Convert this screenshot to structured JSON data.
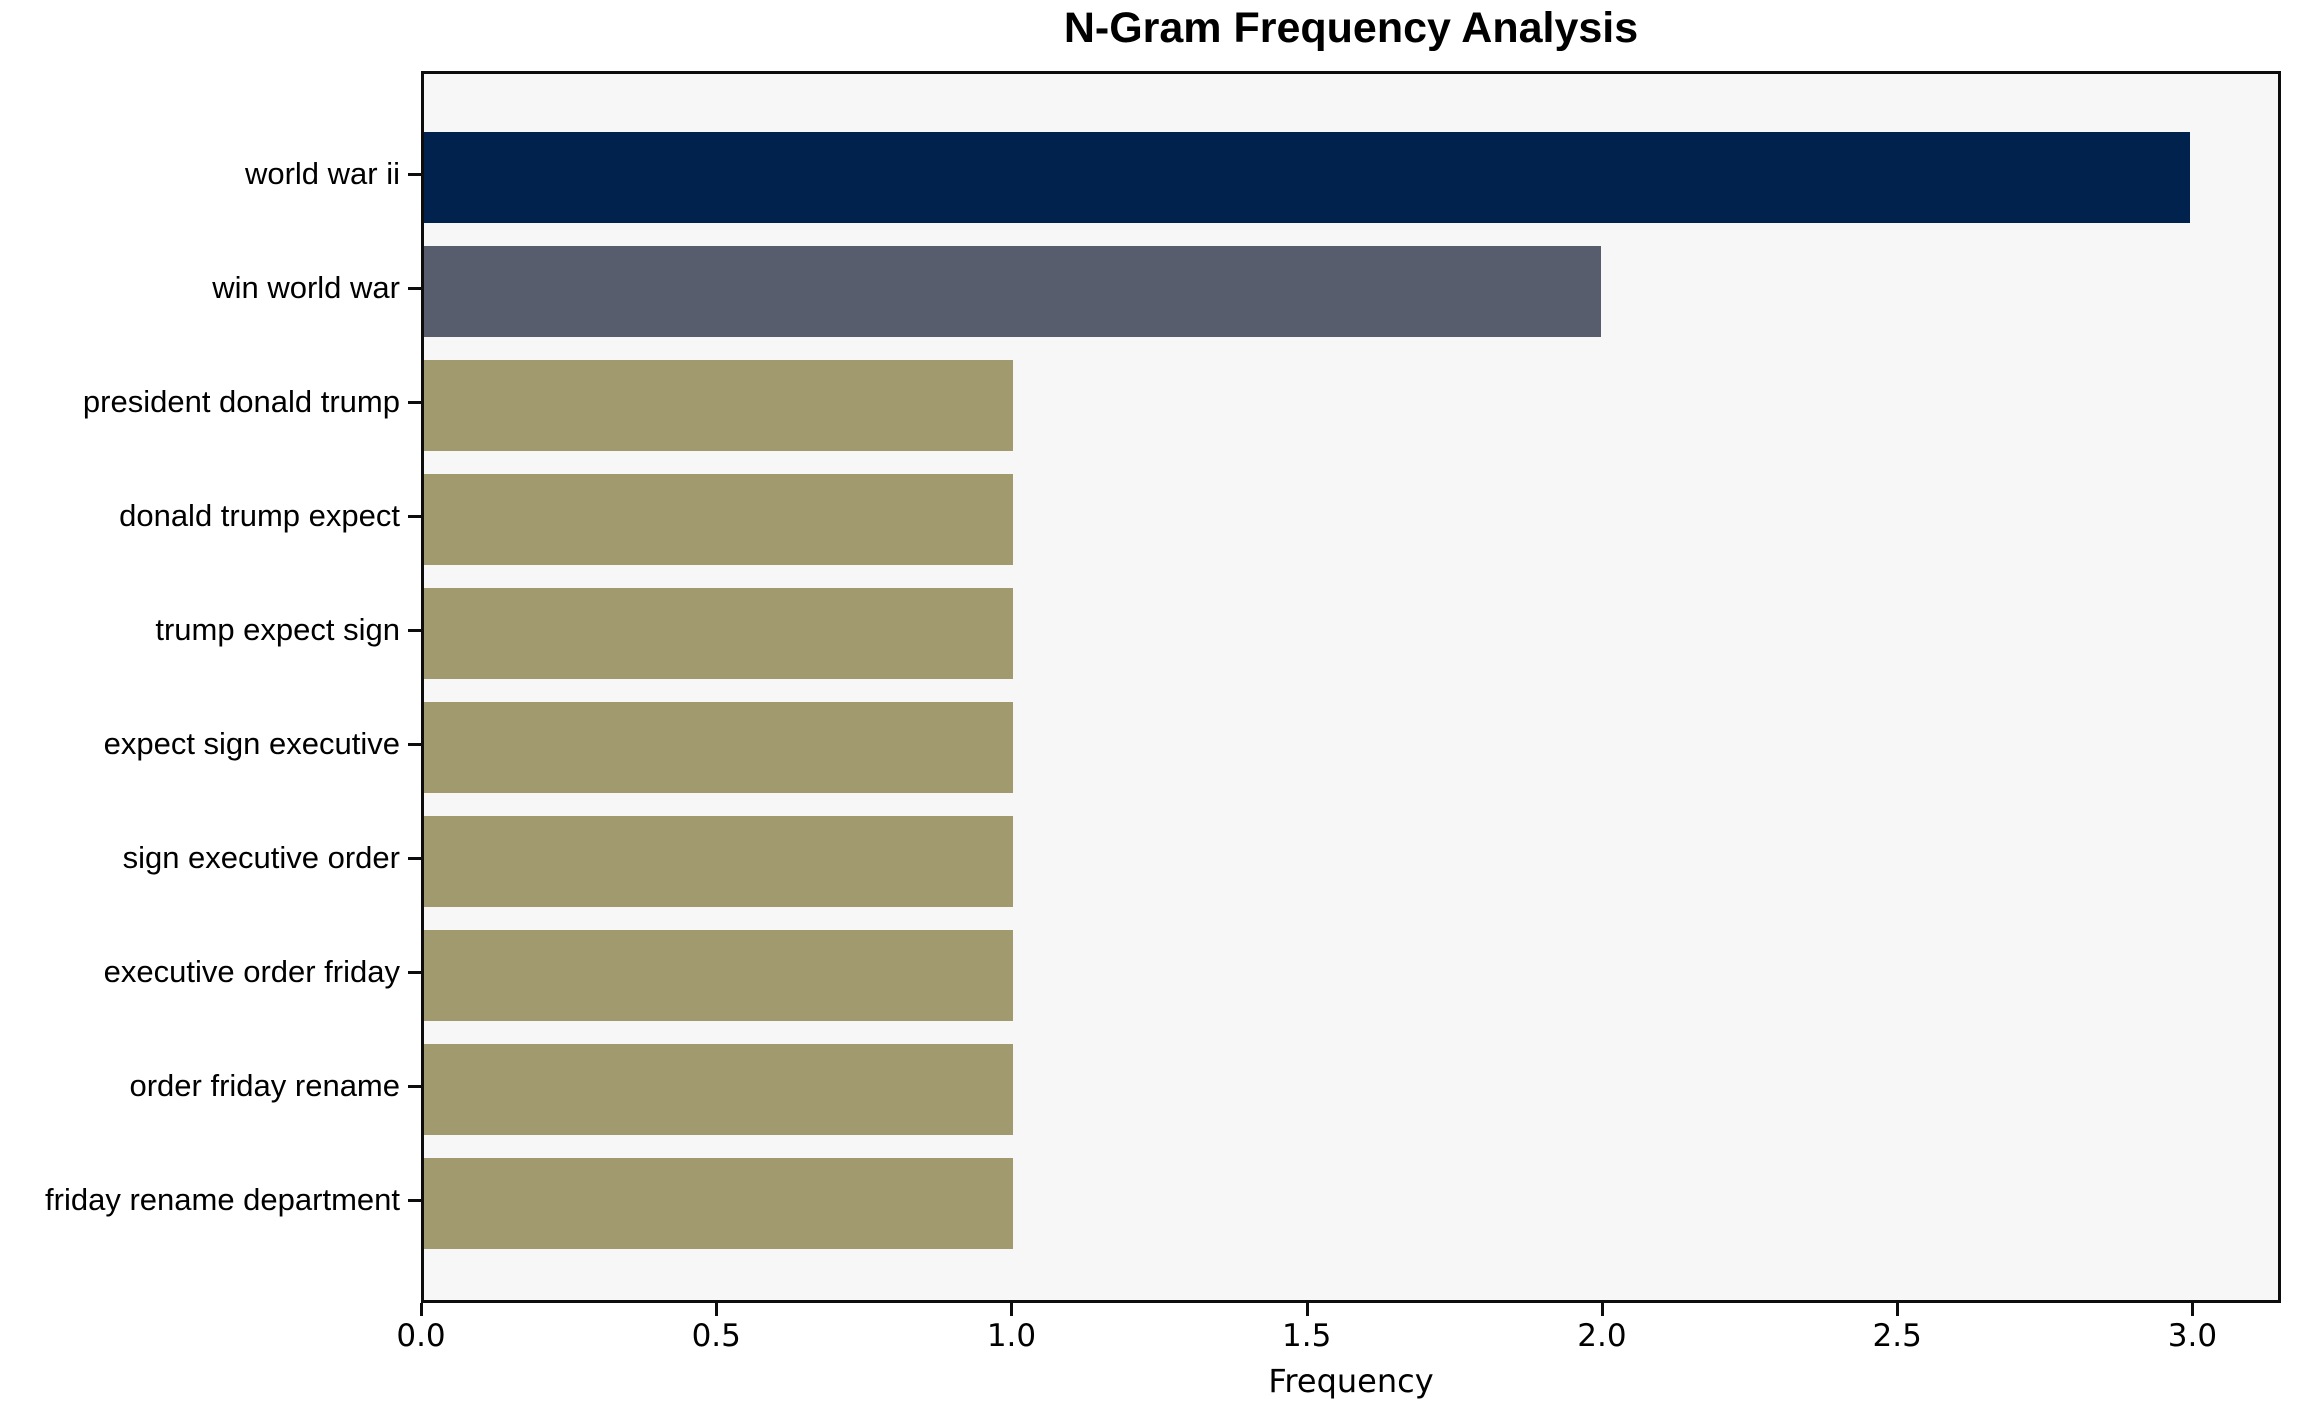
{
  "chart_data": {
    "type": "bar",
    "orientation": "horizontal",
    "title": "N-Gram Frequency Analysis",
    "xlabel": "Frequency",
    "ylabel": "",
    "categories": [
      "world war ii",
      "win world war",
      "president donald trump",
      "donald trump expect",
      "trump expect sign",
      "expect sign executive",
      "sign executive order",
      "executive order friday",
      "order friday rename",
      "friday rename department"
    ],
    "values": [
      3,
      2,
      1,
      1,
      1,
      1,
      1,
      1,
      1,
      1
    ],
    "bar_colors": [
      "#00224d",
      "#575d6d",
      "#a29a6f",
      "#a29a6f",
      "#a29a6f",
      "#a29a6f",
      "#a29a6f",
      "#a29a6f",
      "#a29a6f",
      "#a29a6f"
    ],
    "xlim": [
      0,
      3.15
    ],
    "xticks": [
      0,
      0.5,
      1,
      1.5,
      2,
      2.5,
      3
    ],
    "xtick_labels": [
      "0.0",
      "0.5",
      "1.0",
      "1.5",
      "2.0",
      "2.5",
      "3.0"
    ],
    "grid": false,
    "legend": null,
    "colors": {
      "figure_background": "#ffffff",
      "axes_background": "#f7f7f8",
      "spine": "#0d0d0d",
      "text": "#000000"
    }
  }
}
